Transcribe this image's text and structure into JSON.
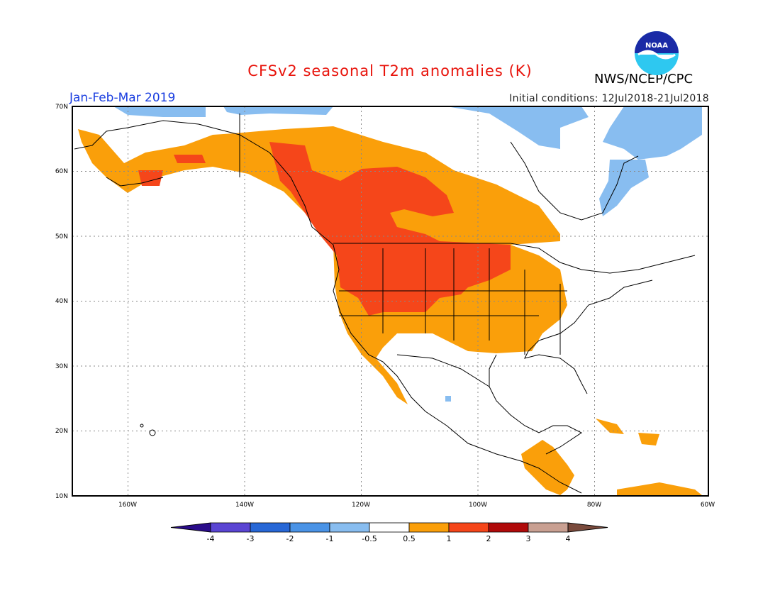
{
  "title": "CFSv2 seasonal T2m anomalies (K)",
  "season": "Jan-Feb-Mar 2019",
  "initial_conditions": "Initial conditions: 12Jul2018-21Jul2018",
  "agency": "NWS/NCEP/CPC",
  "logo": {
    "text": "NOAA",
    "icon": "noaa-logo-icon"
  },
  "map": {
    "lon_range": [
      -173,
      -60
    ],
    "lat_range": [
      10,
      70
    ],
    "lat_ticks": [
      {
        "value": 70,
        "label": "70N"
      },
      {
        "value": 60,
        "label": "60N"
      },
      {
        "value": 50,
        "label": "50N"
      },
      {
        "value": 40,
        "label": "40N"
      },
      {
        "value": 30,
        "label": "30N"
      },
      {
        "value": 20,
        "label": "20N"
      },
      {
        "value": 10,
        "label": "10N"
      }
    ],
    "lon_ticks": [
      {
        "value": -160,
        "label": "160W"
      },
      {
        "value": -140,
        "label": "140W"
      },
      {
        "value": -120,
        "label": "120W"
      },
      {
        "value": -100,
        "label": "100W"
      },
      {
        "value": -80,
        "label": "80W"
      },
      {
        "value": -60,
        "label": "60W"
      }
    ]
  },
  "colorbar": {
    "labels": [
      "-4",
      "-3",
      "-2",
      "-1",
      "-0.5",
      "0.5",
      "1",
      "2",
      "3",
      "4"
    ],
    "colors": [
      "#2a0c8a",
      "#5a45d3",
      "#2767d6",
      "#4a93e6",
      "#88bdf0",
      "#ffffff",
      "#fa9f0a",
      "#f5461a",
      "#b00a0a",
      "#c9a092",
      "#7a4a3c"
    ]
  },
  "anomaly_colors": {
    "warm_0_5_1": "#fa9f0a",
    "warm_1_2": "#f5461a",
    "cool_0_5_1": "#88bdf0",
    "cool_1_2": "#4a93e6"
  }
}
